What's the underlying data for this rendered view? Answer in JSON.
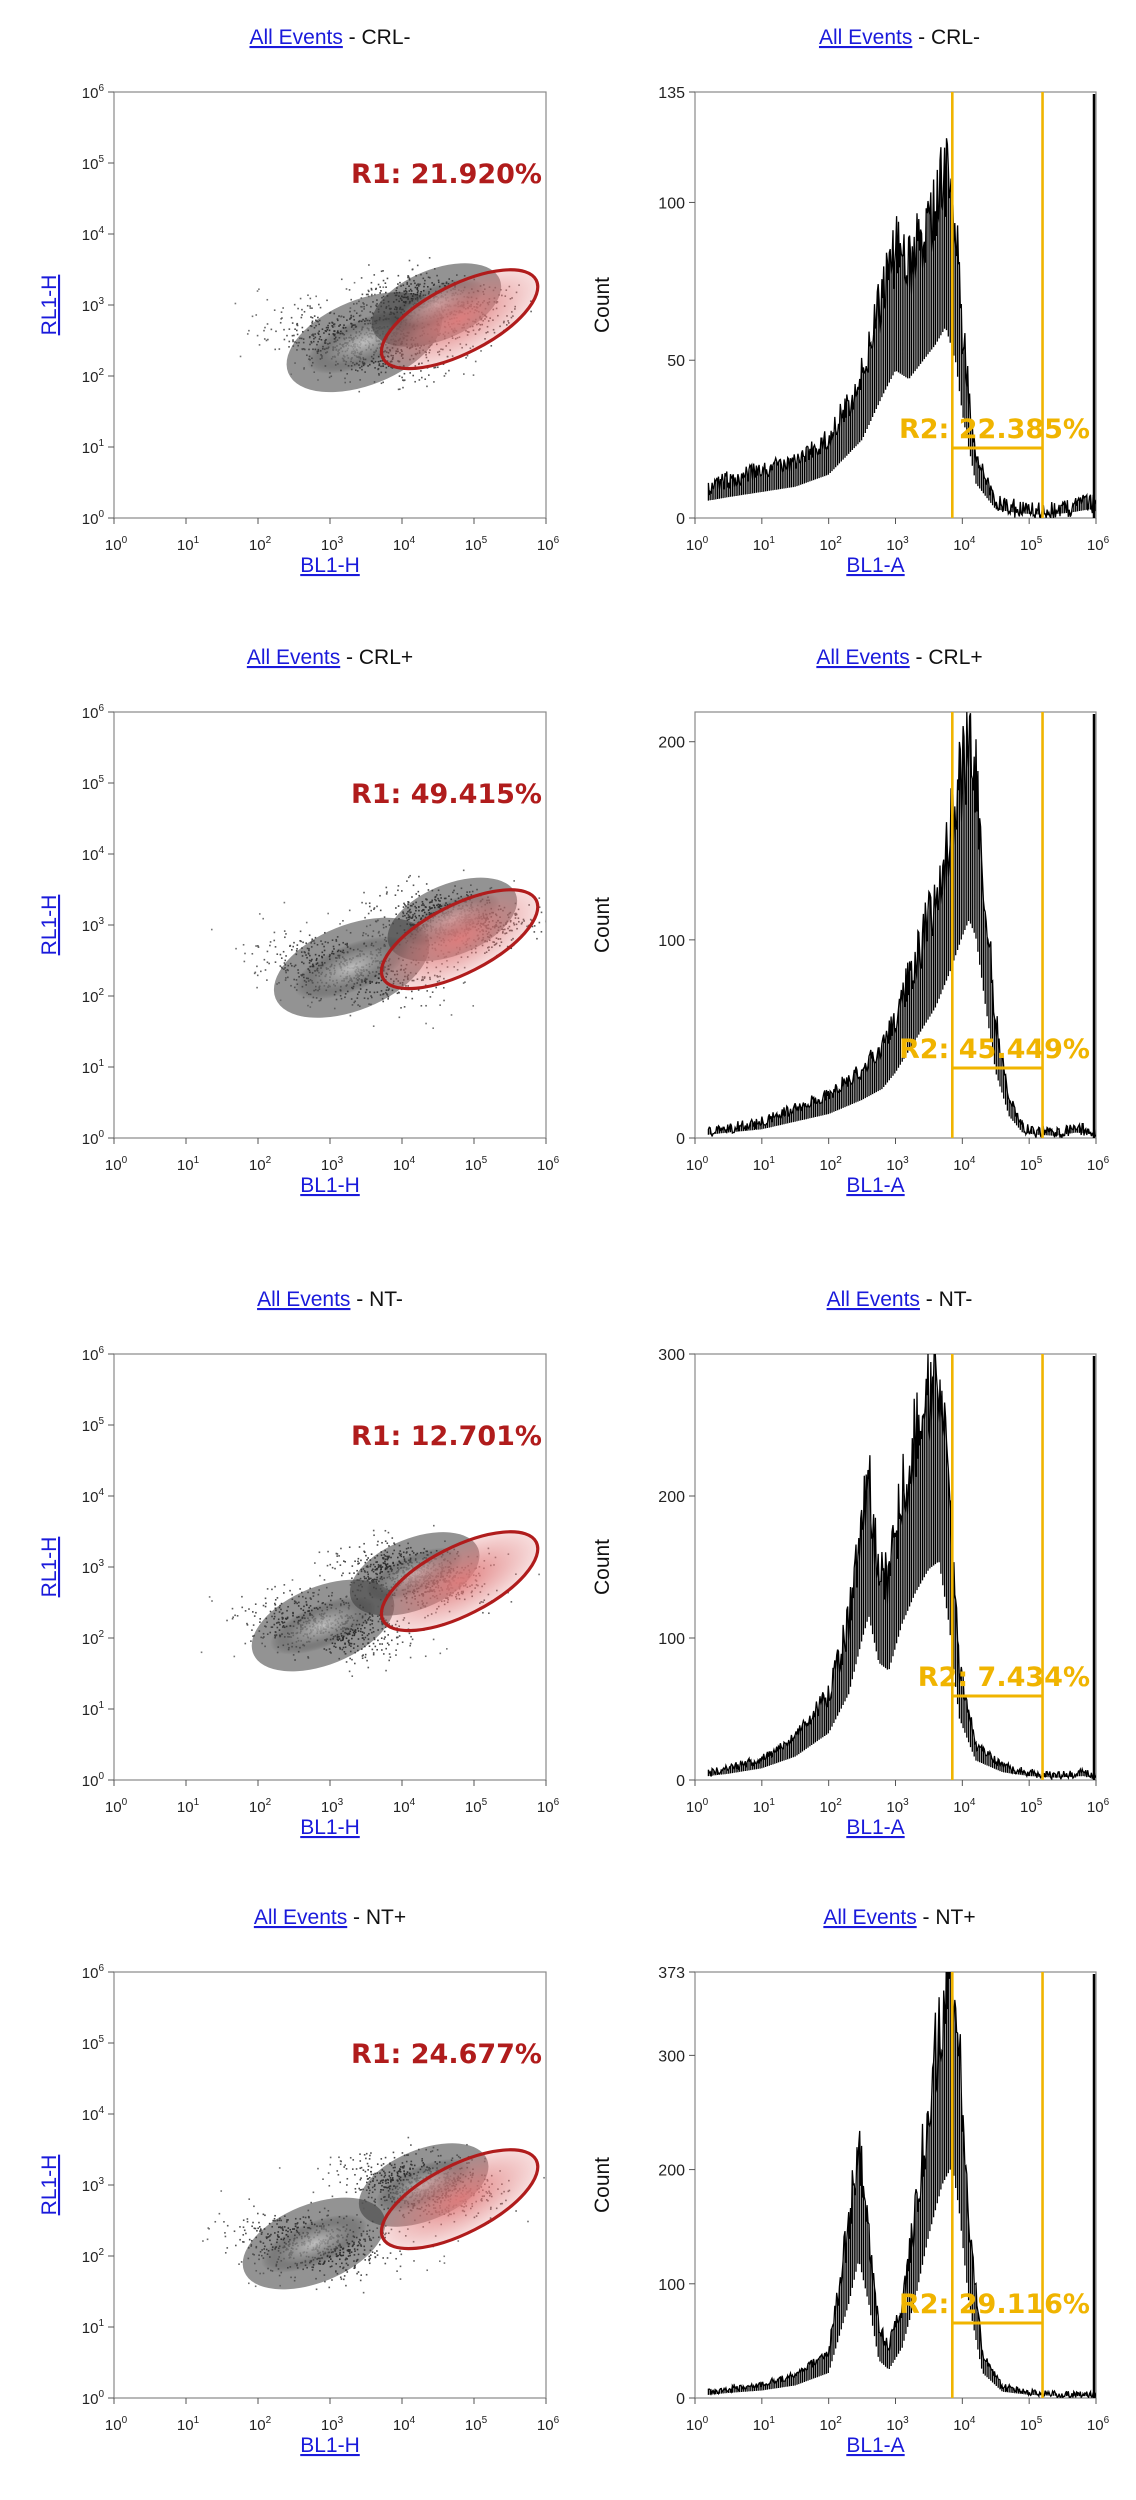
{
  "colors": {
    "link": "#1a1adb",
    "text": "#111111",
    "gate_r1": "#b01c1c",
    "gate_r2": "#f0b400",
    "histogram": "#000000",
    "density_light": "#c8c8c8",
    "density_dark": "#1a1a1a",
    "gate_fill": "#e07c7c"
  },
  "panels": [
    {
      "row": 0,
      "title_link": "All Events",
      "title_rest": " - CRL-",
      "scatter": {
        "x_label": "BL1-H",
        "y_label": "RL1-H",
        "gate_label": "R1: 21.920%"
      },
      "histogram": {
        "x_label": "BL1-A",
        "y_label": "Count",
        "gate_label": "R2: 22.385%"
      }
    },
    {
      "row": 1,
      "title_link": "All Events",
      "title_rest": " - CRL+",
      "scatter": {
        "x_label": "BL1-H",
        "y_label": "RL1-H",
        "gate_label": "R1: 49.415%"
      },
      "histogram": {
        "x_label": "BL1-A",
        "y_label": "Count",
        "gate_label": "R2: 45.449%"
      }
    },
    {
      "row": 2,
      "title_link": "All Events",
      "title_rest": " - NT-",
      "scatter": {
        "x_label": "BL1-H",
        "y_label": "RL1-H",
        "gate_label": "R1: 12.701%"
      },
      "histogram": {
        "x_label": "BL1-A",
        "y_label": "Count",
        "gate_label": "R2: 7.434%"
      }
    },
    {
      "row": 3,
      "title_link": "All Events",
      "title_rest": " - NT+",
      "scatter": {
        "x_label": "BL1-H",
        "y_label": "RL1-H",
        "gate_label": "R1: 24.677%"
      },
      "histogram": {
        "x_label": "BL1-A",
        "y_label": "Count",
        "gate_label": "R2: 29.116%"
      }
    }
  ],
  "chart_data": [
    {
      "type": "scatter",
      "title": "All Events - CRL-",
      "xlabel": "BL1-H",
      "ylabel": "RL1-H",
      "x_scale": "log",
      "y_scale": "log",
      "xlim": [
        1,
        1000000
      ],
      "ylim": [
        1,
        1000000
      ],
      "x_ticks": [
        "10^0",
        "10^1",
        "10^2",
        "10^3",
        "10^4",
        "10^5",
        "10^6"
      ],
      "y_ticks": [
        "10^0",
        "10^1",
        "10^2",
        "10^3",
        "10^4",
        "10^5",
        "10^6"
      ],
      "density": "gray",
      "clusters": [
        {
          "x": 3000,
          "y": 300,
          "spread": 0.6,
          "weight": 0.55
        },
        {
          "x": 30000,
          "y": 1000,
          "spread": 0.5,
          "weight": 0.45
        }
      ],
      "gate": {
        "name": "R1",
        "shape": "ellipse",
        "center_log": [
          4.8,
          2.8
        ],
        "label": "R1: 21.920%",
        "percent": 21.92
      }
    },
    {
      "type": "histogram",
      "title": "All Events - CRL-",
      "xlabel": "BL1-A",
      "ylabel": "Count",
      "x_scale": "log",
      "xlim": [
        1,
        1000000
      ],
      "ylim": [
        0,
        135
      ],
      "x_ticks": [
        "10^0",
        "10^1",
        "10^2",
        "10^3",
        "10^4",
        "10^5",
        "10^6"
      ],
      "y_ticks": [
        0,
        50,
        100,
        135
      ],
      "curve_log_x": [
        0.2,
        0.5,
        1.0,
        1.5,
        2.0,
        2.5,
        2.8,
        3.0,
        3.2,
        3.4,
        3.6,
        3.75,
        3.9,
        4.0,
        4.2,
        4.5,
        4.8,
        5.1,
        5.3,
        5.6,
        5.9,
        6.0
      ],
      "curve_counts": [
        10,
        12,
        15,
        18,
        25,
        45,
        70,
        85,
        80,
        90,
        100,
        110,
        90,
        60,
        20,
        5,
        3,
        2,
        2,
        3,
        5,
        4
      ],
      "gate": {
        "name": "R2",
        "range_log": [
          3.85,
          5.2
        ],
        "label": "R2: 22.385%",
        "percent": 22.385
      }
    },
    {
      "type": "scatter",
      "title": "All Events - CRL+",
      "xlabel": "BL1-H",
      "ylabel": "RL1-H",
      "x_scale": "log",
      "y_scale": "log",
      "xlim": [
        1,
        1000000
      ],
      "ylim": [
        1,
        1000000
      ],
      "x_ticks": [
        "10^0",
        "10^1",
        "10^2",
        "10^3",
        "10^4",
        "10^5",
        "10^6"
      ],
      "y_ticks": [
        "10^0",
        "10^1",
        "10^2",
        "10^3",
        "10^4",
        "10^5",
        "10^6"
      ],
      "density": "gray",
      "clusters": [
        {
          "x": 2000,
          "y": 250,
          "spread": 0.6,
          "weight": 0.45
        },
        {
          "x": 50000,
          "y": 1200,
          "spread": 0.5,
          "weight": 0.55
        }
      ],
      "gate": {
        "name": "R1",
        "shape": "ellipse",
        "center_log": [
          4.8,
          2.8
        ],
        "label": "R1: 49.415%",
        "percent": 49.415
      }
    },
    {
      "type": "histogram",
      "title": "All Events - CRL+",
      "xlabel": "BL1-A",
      "ylabel": "Count",
      "x_scale": "log",
      "xlim": [
        1,
        1000000
      ],
      "ylim": [
        0,
        215
      ],
      "x_ticks": [
        "10^0",
        "10^1",
        "10^2",
        "10^3",
        "10^4",
        "10^5",
        "10^6"
      ],
      "y_ticks": [
        0,
        100,
        200
      ],
      "curve_log_x": [
        0.2,
        0.5,
        1.0,
        1.5,
        2.0,
        2.5,
        2.8,
        3.0,
        3.3,
        3.6,
        3.8,
        4.0,
        4.1,
        4.2,
        4.35,
        4.5,
        4.7,
        4.9,
        5.1,
        5.4,
        5.7,
        6.0
      ],
      "curve_counts": [
        3,
        5,
        8,
        15,
        22,
        35,
        45,
        60,
        90,
        120,
        150,
        185,
        200,
        185,
        120,
        60,
        20,
        5,
        3,
        2,
        5,
        3
      ],
      "gate": {
        "name": "R2",
        "range_log": [
          3.85,
          5.2
        ],
        "label": "R2: 45.449%",
        "percent": 45.449
      }
    },
    {
      "type": "scatter",
      "title": "All Events - NT-",
      "xlabel": "BL1-H",
      "ylabel": "RL1-H",
      "x_scale": "log",
      "y_scale": "log",
      "xlim": [
        1,
        1000000
      ],
      "ylim": [
        1,
        1000000
      ],
      "x_ticks": [
        "10^0",
        "10^1",
        "10^2",
        "10^3",
        "10^4",
        "10^5",
        "10^6"
      ],
      "y_ticks": [
        "10^0",
        "10^1",
        "10^2",
        "10^3",
        "10^4",
        "10^5",
        "10^6"
      ],
      "density": "gray",
      "clusters": [
        {
          "x": 800,
          "y": 150,
          "spread": 0.55,
          "weight": 0.45
        },
        {
          "x": 15000,
          "y": 800,
          "spread": 0.5,
          "weight": 0.55
        }
      ],
      "gate": {
        "name": "R1",
        "shape": "ellipse",
        "center_log": [
          4.8,
          2.8
        ],
        "label": "R1: 12.701%",
        "percent": 12.701
      }
    },
    {
      "type": "histogram",
      "title": "All Events - NT-",
      "xlabel": "BL1-A",
      "ylabel": "Count",
      "x_scale": "log",
      "xlim": [
        1,
        1000000
      ],
      "ylim": [
        0,
        300
      ],
      "x_ticks": [
        "10^0",
        "10^1",
        "10^2",
        "10^3",
        "10^4",
        "10^5",
        "10^6"
      ],
      "y_ticks": [
        0,
        100,
        200,
        300
      ],
      "curve_log_x": [
        0.2,
        0.5,
        1.0,
        1.5,
        2.0,
        2.3,
        2.5,
        2.6,
        2.75,
        2.9,
        3.1,
        3.3,
        3.5,
        3.65,
        3.8,
        3.95,
        4.2,
        4.6,
        5.0,
        5.4,
        5.8,
        6.0
      ],
      "curve_counts": [
        5,
        8,
        15,
        30,
        60,
        110,
        180,
        210,
        150,
        140,
        200,
        240,
        270,
        280,
        200,
        80,
        25,
        10,
        5,
        3,
        5,
        3
      ],
      "gate": {
        "name": "R2",
        "range_log": [
          3.85,
          5.2
        ],
        "label": "R2: 7.434%",
        "percent": 7.434
      }
    },
    {
      "type": "scatter",
      "title": "All Events - NT+",
      "xlabel": "BL1-H",
      "ylabel": "RL1-H",
      "x_scale": "log",
      "y_scale": "log",
      "xlim": [
        1,
        1000000
      ],
      "ylim": [
        1,
        1000000
      ],
      "x_ticks": [
        "10^0",
        "10^1",
        "10^2",
        "10^3",
        "10^4",
        "10^5",
        "10^6"
      ],
      "y_ticks": [
        "10^0",
        "10^1",
        "10^2",
        "10^3",
        "10^4",
        "10^5",
        "10^6"
      ],
      "density": "gray",
      "clusters": [
        {
          "x": 600,
          "y": 150,
          "spread": 0.55,
          "weight": 0.45
        },
        {
          "x": 20000,
          "y": 1000,
          "spread": 0.5,
          "weight": 0.55
        }
      ],
      "gate": {
        "name": "R1",
        "shape": "ellipse",
        "center_log": [
          4.8,
          2.8
        ],
        "label": "R1: 24.677%",
        "percent": 24.677
      }
    },
    {
      "type": "histogram",
      "title": "All Events - NT+",
      "xlabel": "BL1-A",
      "ylabel": "Count",
      "x_scale": "log",
      "xlim": [
        1,
        1000000
      ],
      "ylim": [
        0,
        373
      ],
      "x_ticks": [
        "10^0",
        "10^1",
        "10^2",
        "10^3",
        "10^4",
        "10^5",
        "10^6"
      ],
      "y_ticks": [
        0,
        100,
        200,
        300,
        373
      ],
      "curve_log_x": [
        0.2,
        0.5,
        1.0,
        1.5,
        2.0,
        2.3,
        2.45,
        2.6,
        2.75,
        2.9,
        3.1,
        3.3,
        3.5,
        3.7,
        3.85,
        3.95,
        4.1,
        4.3,
        4.6,
        5.0,
        5.5,
        6.0
      ],
      "curve_counts": [
        5,
        8,
        12,
        20,
        40,
        150,
        220,
        150,
        60,
        45,
        80,
        160,
        260,
        340,
        370,
        300,
        150,
        40,
        10,
        5,
        3,
        3
      ],
      "gate": {
        "name": "R2",
        "range_log": [
          3.85,
          5.2
        ],
        "label": "R2: 29.116%",
        "percent": 29.116
      }
    }
  ]
}
